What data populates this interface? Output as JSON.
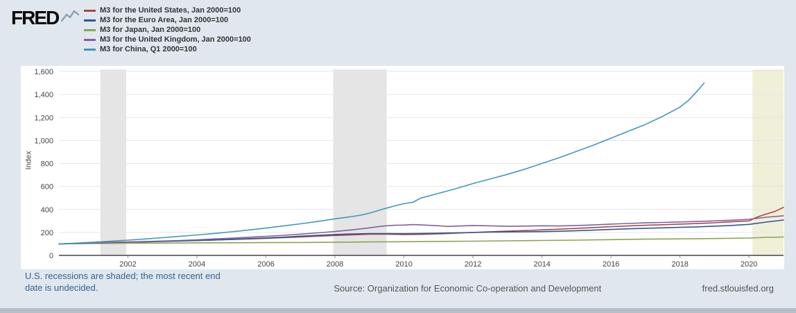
{
  "brand": {
    "name": "FRED"
  },
  "footer": {
    "note": "U.S. recessions are shaded; the most recent end date is undecided.",
    "source": "Source: Organization for Economic Co-operation and Development",
    "site": "fred.stlouisfed.org"
  },
  "colors": {
    "background": "#e0e7ee",
    "panel": "#ffffff",
    "recession_gray": "#e5e5e5",
    "recession_pending_yellow": "#f0efd8",
    "gridline": "#e6e6e6",
    "axis": "#444444"
  },
  "chart_data": {
    "type": "line",
    "title": "",
    "xlabel": "",
    "ylabel": "Index",
    "x_range": [
      2000,
      2021
    ],
    "y_range": [
      0,
      1600
    ],
    "x_ticks": [
      2002,
      2004,
      2006,
      2008,
      2010,
      2012,
      2014,
      2016,
      2018,
      2020
    ],
    "y_ticks": [
      0,
      200,
      400,
      600,
      800,
      1000,
      1200,
      1400,
      1600
    ],
    "grid": "horizontal",
    "legend_position": "top-left",
    "recession_bands": [
      {
        "x0": 2001.2,
        "x1": 2001.95,
        "color": "#e5e5e5"
      },
      {
        "x0": 2007.95,
        "x1": 2009.5,
        "color": "#e5e5e5"
      },
      {
        "x0": 2020.1,
        "x1": 2021.0,
        "color": "#f0efd8"
      }
    ],
    "series": [
      {
        "name": "M3 for the United States, Jan 2000=100",
        "color": "#aa4643",
        "points": [
          [
            2000,
            100
          ],
          [
            2000.5,
            104
          ],
          [
            2001,
            109
          ],
          [
            2001.5,
            114
          ],
          [
            2002,
            117
          ],
          [
            2002.5,
            120
          ],
          [
            2003,
            124
          ],
          [
            2003.5,
            127
          ],
          [
            2004,
            130
          ],
          [
            2004.5,
            134
          ],
          [
            2005,
            138
          ],
          [
            2005.5,
            143
          ],
          [
            2006,
            148
          ],
          [
            2006.5,
            154
          ],
          [
            2007,
            160
          ],
          [
            2007.5,
            167
          ],
          [
            2008,
            173
          ],
          [
            2008.5,
            179
          ],
          [
            2009,
            184
          ],
          [
            2009.5,
            185
          ],
          [
            2010,
            182
          ],
          [
            2010.5,
            183
          ],
          [
            2011,
            187
          ],
          [
            2011.5,
            193
          ],
          [
            2012,
            200
          ],
          [
            2012.5,
            206
          ],
          [
            2013,
            211
          ],
          [
            2013.5,
            216
          ],
          [
            2014,
            222
          ],
          [
            2014.5,
            228
          ],
          [
            2015,
            235
          ],
          [
            2015.5,
            242
          ],
          [
            2016,
            250
          ],
          [
            2016.5,
            256
          ],
          [
            2017,
            262
          ],
          [
            2017.5,
            267
          ],
          [
            2018,
            272
          ],
          [
            2018.5,
            277
          ],
          [
            2019,
            284
          ],
          [
            2019.5,
            292
          ],
          [
            2020,
            300
          ],
          [
            2020.25,
            335
          ],
          [
            2020.5,
            360
          ],
          [
            2020.75,
            382
          ],
          [
            2021,
            418
          ]
        ]
      },
      {
        "name": "M3 for the Euro Area, Jan 2000=100",
        "color": "#2f5597",
        "points": [
          [
            2000,
            100
          ],
          [
            2000.5,
            103
          ],
          [
            2001,
            107
          ],
          [
            2001.5,
            111
          ],
          [
            2002,
            114
          ],
          [
            2002.5,
            117
          ],
          [
            2003,
            121
          ],
          [
            2003.5,
            125
          ],
          [
            2004,
            129
          ],
          [
            2004.5,
            134
          ],
          [
            2005,
            140
          ],
          [
            2005.5,
            146
          ],
          [
            2006,
            152
          ],
          [
            2006.5,
            159
          ],
          [
            2007,
            167
          ],
          [
            2007.5,
            175
          ],
          [
            2008,
            182
          ],
          [
            2008.5,
            187
          ],
          [
            2009,
            190
          ],
          [
            2009.5,
            190
          ],
          [
            2010,
            189
          ],
          [
            2010.5,
            191
          ],
          [
            2011,
            193
          ],
          [
            2011.5,
            196
          ],
          [
            2012,
            199
          ],
          [
            2012.5,
            202
          ],
          [
            2013,
            204
          ],
          [
            2013.5,
            205
          ],
          [
            2014,
            207
          ],
          [
            2014.5,
            210
          ],
          [
            2015,
            215
          ],
          [
            2015.5,
            220
          ],
          [
            2016,
            226
          ],
          [
            2016.5,
            231
          ],
          [
            2017,
            236
          ],
          [
            2017.5,
            240
          ],
          [
            2018,
            244
          ],
          [
            2018.5,
            248
          ],
          [
            2019,
            254
          ],
          [
            2019.5,
            261
          ],
          [
            2020,
            270
          ],
          [
            2020.5,
            290
          ],
          [
            2021,
            308
          ]
        ]
      },
      {
        "name": "M3 for Japan, Jan 2000=100",
        "color": "#89a54e",
        "points": [
          [
            2000,
            100
          ],
          [
            2001,
            103
          ],
          [
            2002,
            106
          ],
          [
            2003,
            107
          ],
          [
            2004,
            109
          ],
          [
            2005,
            110
          ],
          [
            2006,
            111
          ],
          [
            2007,
            112
          ],
          [
            2008,
            114
          ],
          [
            2009,
            117
          ],
          [
            2010,
            119
          ],
          [
            2011,
            122
          ],
          [
            2012,
            124
          ],
          [
            2013,
            127
          ],
          [
            2014,
            130
          ],
          [
            2015,
            133
          ],
          [
            2016,
            137
          ],
          [
            2017,
            141
          ],
          [
            2018,
            144
          ],
          [
            2019,
            147
          ],
          [
            2020,
            151
          ],
          [
            2020.5,
            157
          ],
          [
            2021,
            160
          ]
        ]
      },
      {
        "name": "M3 for the United Kingdom, Jan 2000=100",
        "color": "#7d62a0",
        "points": [
          [
            2000,
            100
          ],
          [
            2000.5,
            104
          ],
          [
            2001,
            108
          ],
          [
            2001.5,
            112
          ],
          [
            2002,
            116
          ],
          [
            2002.5,
            120
          ],
          [
            2003,
            125
          ],
          [
            2003.5,
            130
          ],
          [
            2004,
            136
          ],
          [
            2004.5,
            143
          ],
          [
            2005,
            150
          ],
          [
            2005.5,
            158
          ],
          [
            2006,
            166
          ],
          [
            2006.5,
            175
          ],
          [
            2007,
            185
          ],
          [
            2007.5,
            196
          ],
          [
            2008,
            208
          ],
          [
            2008.5,
            222
          ],
          [
            2009,
            240
          ],
          [
            2009.25,
            250
          ],
          [
            2009.5,
            258
          ],
          [
            2009.75,
            262
          ],
          [
            2010,
            264
          ],
          [
            2010.25,
            268
          ],
          [
            2010.5,
            265
          ],
          [
            2011,
            258
          ],
          [
            2011.25,
            252
          ],
          [
            2011.5,
            255
          ],
          [
            2012,
            260
          ],
          [
            2012.5,
            257
          ],
          [
            2013,
            253
          ],
          [
            2013.5,
            255
          ],
          [
            2014,
            258
          ],
          [
            2014.5,
            256
          ],
          [
            2015,
            260
          ],
          [
            2015.5,
            265
          ],
          [
            2016,
            272
          ],
          [
            2016.5,
            278
          ],
          [
            2017,
            283
          ],
          [
            2017.5,
            287
          ],
          [
            2018,
            291
          ],
          [
            2018.5,
            295
          ],
          [
            2019,
            300
          ],
          [
            2019.5,
            306
          ],
          [
            2020,
            314
          ],
          [
            2020.5,
            332
          ],
          [
            2021,
            345
          ]
        ]
      },
      {
        "name": "M3 for China, Q1 2000=100",
        "color": "#4198b5",
        "points": [
          [
            2000,
            100
          ],
          [
            2000.5,
            107
          ],
          [
            2001,
            115
          ],
          [
            2001.5,
            124
          ],
          [
            2002,
            133
          ],
          [
            2002.5,
            143
          ],
          [
            2003,
            154
          ],
          [
            2003.5,
            166
          ],
          [
            2004,
            178
          ],
          [
            2004.5,
            191
          ],
          [
            2005,
            205
          ],
          [
            2005.5,
            221
          ],
          [
            2006,
            238
          ],
          [
            2006.5,
            256
          ],
          [
            2007,
            275
          ],
          [
            2007.5,
            295
          ],
          [
            2008,
            318
          ],
          [
            2008.25,
            328
          ],
          [
            2008.5,
            338
          ],
          [
            2008.75,
            350
          ],
          [
            2009,
            368
          ],
          [
            2009.25,
            390
          ],
          [
            2009.5,
            412
          ],
          [
            2009.75,
            432
          ],
          [
            2010,
            450
          ],
          [
            2010.25,
            462
          ],
          [
            2010.5,
            500
          ],
          [
            2011,
            540
          ],
          [
            2011.5,
            580
          ],
          [
            2012,
            625
          ],
          [
            2012.5,
            665
          ],
          [
            2013,
            705
          ],
          [
            2013.5,
            750
          ],
          [
            2014,
            800
          ],
          [
            2014.5,
            850
          ],
          [
            2015,
            905
          ],
          [
            2015.5,
            960
          ],
          [
            2016,
            1020
          ],
          [
            2016.5,
            1080
          ],
          [
            2017,
            1140
          ],
          [
            2017.5,
            1210
          ],
          [
            2018,
            1290
          ],
          [
            2018.25,
            1350
          ],
          [
            2018.5,
            1430
          ],
          [
            2018.7,
            1500
          ]
        ]
      }
    ]
  }
}
